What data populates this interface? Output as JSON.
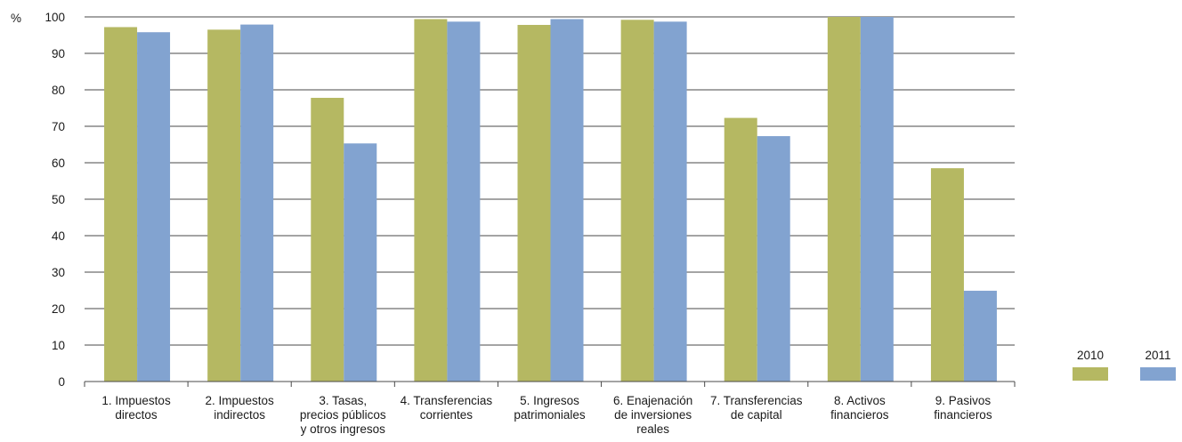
{
  "chart_data": {
    "type": "bar",
    "ylabel": "%",
    "ylim": [
      0,
      100
    ],
    "yticks": [
      0,
      10,
      20,
      30,
      40,
      50,
      60,
      70,
      80,
      90,
      100
    ],
    "grid": true,
    "legend_position": "bottom-right",
    "categories": [
      [
        "1. Impuestos",
        "directos"
      ],
      [
        "2. Impuestos",
        "indirectos"
      ],
      [
        "3. Tasas,",
        "precios públicos",
        "y otros ingresos"
      ],
      [
        "4. Transferencias",
        "corrientes"
      ],
      [
        "5. Ingresos",
        "patrimoniales"
      ],
      [
        "6. Enajenación",
        "de inversiones",
        "reales"
      ],
      [
        "7. Transferencias",
        "de capital"
      ],
      [
        "8. Activos",
        "financieros"
      ],
      [
        "9. Pasivos",
        "financieros"
      ]
    ],
    "series": [
      {
        "name": "2010",
        "color": "#b5b862",
        "values": [
          97.2,
          96.5,
          77.8,
          99.4,
          97.8,
          99.2,
          72.3,
          100,
          58.5
        ]
      },
      {
        "name": "2011",
        "color": "#82a3d0",
        "values": [
          95.8,
          97.9,
          65.3,
          98.7,
          99.4,
          98.7,
          67.3,
          100,
          24.9
        ]
      }
    ]
  }
}
